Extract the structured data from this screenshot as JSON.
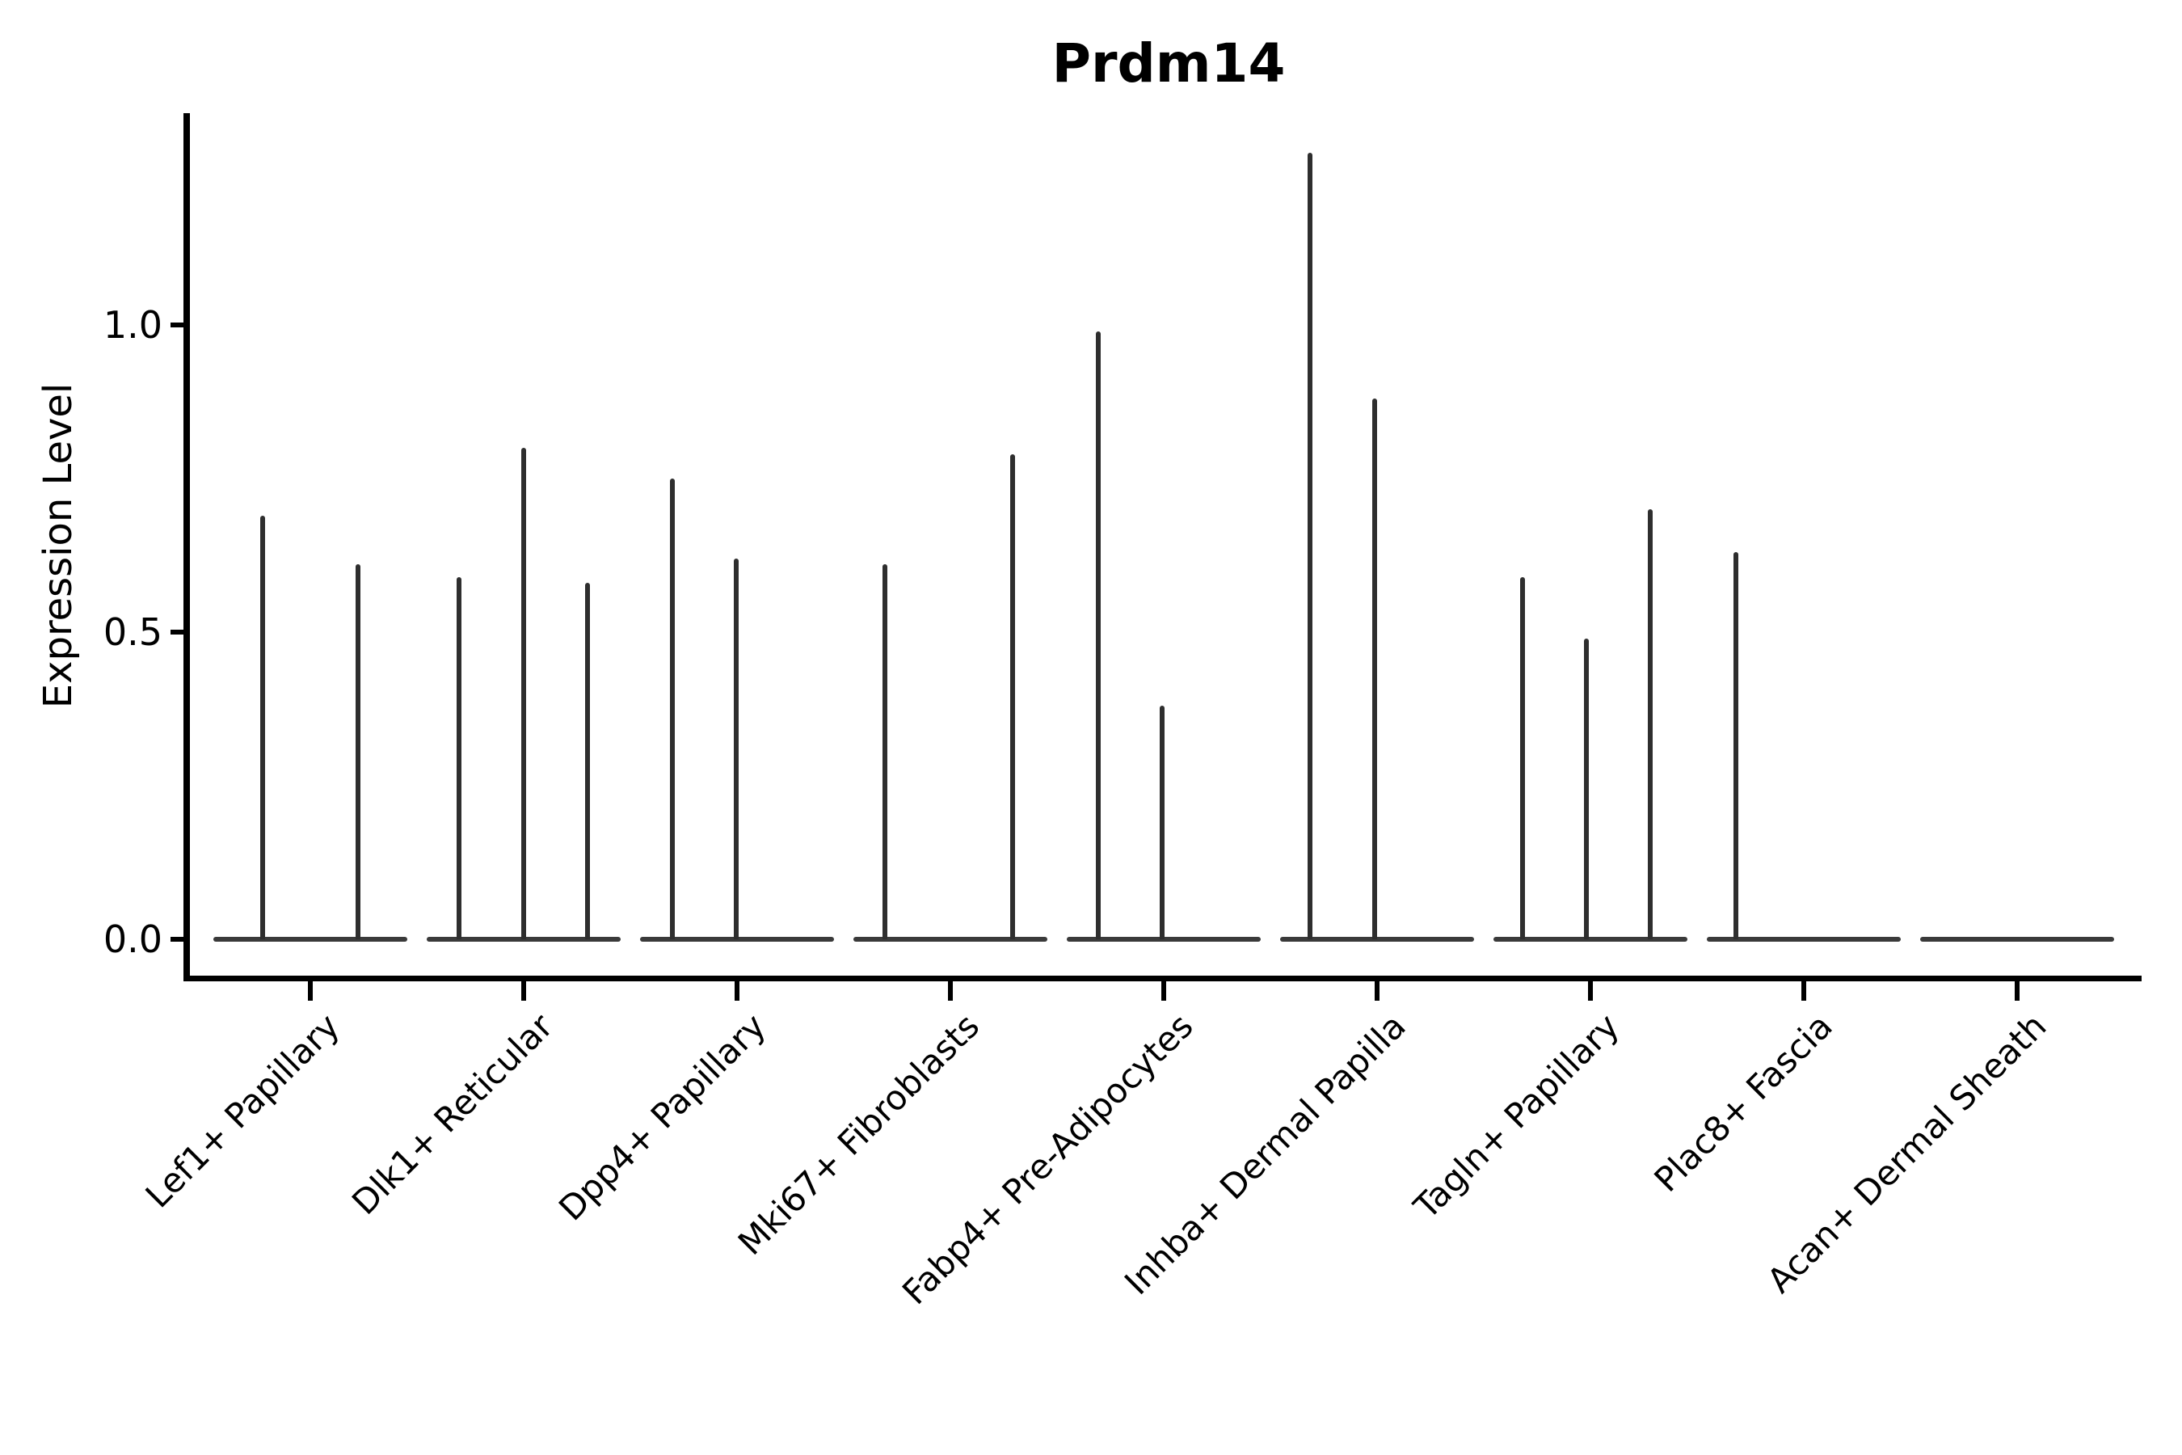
{
  "figure": {
    "background_color": "#ffffff",
    "axis_color": "#000000",
    "text_color": "#000000",
    "spike_color": "#2e2e2e",
    "baseline_color": "#3a3a3a"
  },
  "chart_data": {
    "type": "violin",
    "title": "Prdm14",
    "xlabel": "",
    "ylabel": "Expression Level",
    "ylim": [
      -0.06,
      1.35
    ],
    "grid": false,
    "legend": false,
    "ytick_labels": [
      "0.0",
      "0.5",
      "1.0"
    ],
    "ytick_values": [
      0.0,
      0.5,
      1.0
    ],
    "categories": [
      "Lef1+ Papillary",
      "Dlk1+ Reticular",
      "Dpp4+ Papillary",
      "Mki67+ Fibroblasts",
      "Fabp4+ Pre-Adipocytes",
      "Inhba+ Dermal Papilla",
      "Tagln+ Papillary",
      "Plac8+ Fascia",
      "Acan+ Dermal Sheath"
    ],
    "description": "Violin plot of Prdm14 expression; each cell type shows a flat violin base at expression 0 with thin spikes rising to the maximum expression of rare expressing cells.",
    "baseline_value": 0.0,
    "violins": [
      {
        "category": "Lef1+ Papillary",
        "spikes": [
          {
            "dx": -59,
            "max": 0.69
          },
          {
            "dx": 59,
            "max": 0.61
          }
        ]
      },
      {
        "category": "Dlk1+ Reticular",
        "spikes": [
          {
            "dx": -80,
            "max": 0.59
          },
          {
            "dx": 0,
            "max": 0.8
          },
          {
            "dx": 79,
            "max": 0.58
          }
        ]
      },
      {
        "category": "Dpp4+ Papillary",
        "spikes": [
          {
            "dx": -80,
            "max": 0.75
          },
          {
            "dx": -1,
            "max": 0.62
          }
        ]
      },
      {
        "category": "Mki67+ Fibroblasts",
        "spikes": [
          {
            "dx": -81,
            "max": 0.61
          },
          {
            "dx": 77,
            "max": 0.79
          }
        ]
      },
      {
        "category": "Fabp4+ Pre-Adipocytes",
        "spikes": [
          {
            "dx": -81,
            "max": 0.99
          },
          {
            "dx": -2,
            "max": 0.38
          }
        ]
      },
      {
        "category": "Inhba+ Dermal Papilla",
        "spikes": [
          {
            "dx": -83,
            "max": 1.28
          },
          {
            "dx": -3,
            "max": 0.88
          }
        ]
      },
      {
        "category": "Tagln+ Papillary",
        "spikes": [
          {
            "dx": -84,
            "max": 0.59
          },
          {
            "dx": -5,
            "max": 0.49
          },
          {
            "dx": 74,
            "max": 0.7
          }
        ]
      },
      {
        "category": "Plac8+ Fascia",
        "spikes": [
          {
            "dx": -84,
            "max": 0.63
          }
        ]
      },
      {
        "category": "Acan+ Dermal Sheath",
        "spikes": []
      }
    ]
  }
}
